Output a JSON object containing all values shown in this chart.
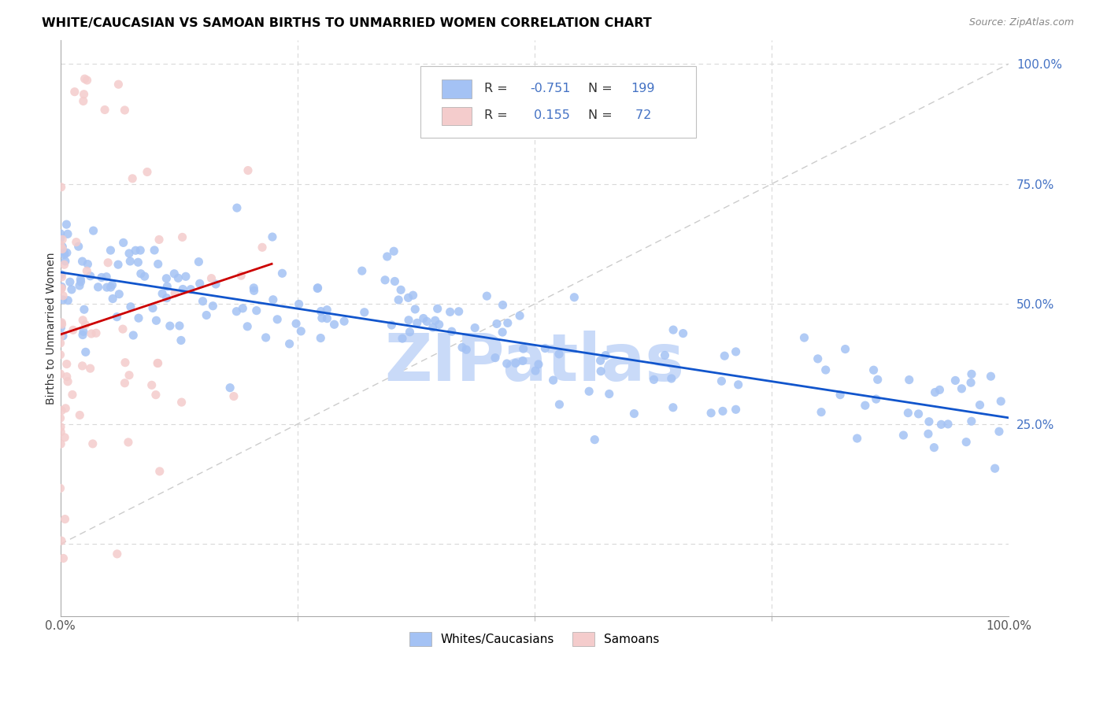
{
  "title": "WHITE/CAUCASIAN VS SAMOAN BIRTHS TO UNMARRIED WOMEN CORRELATION CHART",
  "source": "Source: ZipAtlas.com",
  "ylabel": "Births to Unmarried Women",
  "legend_label1": "Whites/Caucasians",
  "legend_label2": "Samoans",
  "blue_color": "#a4c2f4",
  "pink_color": "#f4cccc",
  "blue_line_color": "#1155cc",
  "pink_line_color": "#cc0000",
  "diagonal_color": "#cccccc",
  "watermark_color": "#c9daf8",
  "background_color": "#ffffff",
  "grid_color": "#d9d9d9",
  "title_color": "#000000",
  "right_tick_color": "#4472c4",
  "seed": 7,
  "xmin": 0.0,
  "xmax": 1.0,
  "ymin": -0.15,
  "ymax": 1.05
}
